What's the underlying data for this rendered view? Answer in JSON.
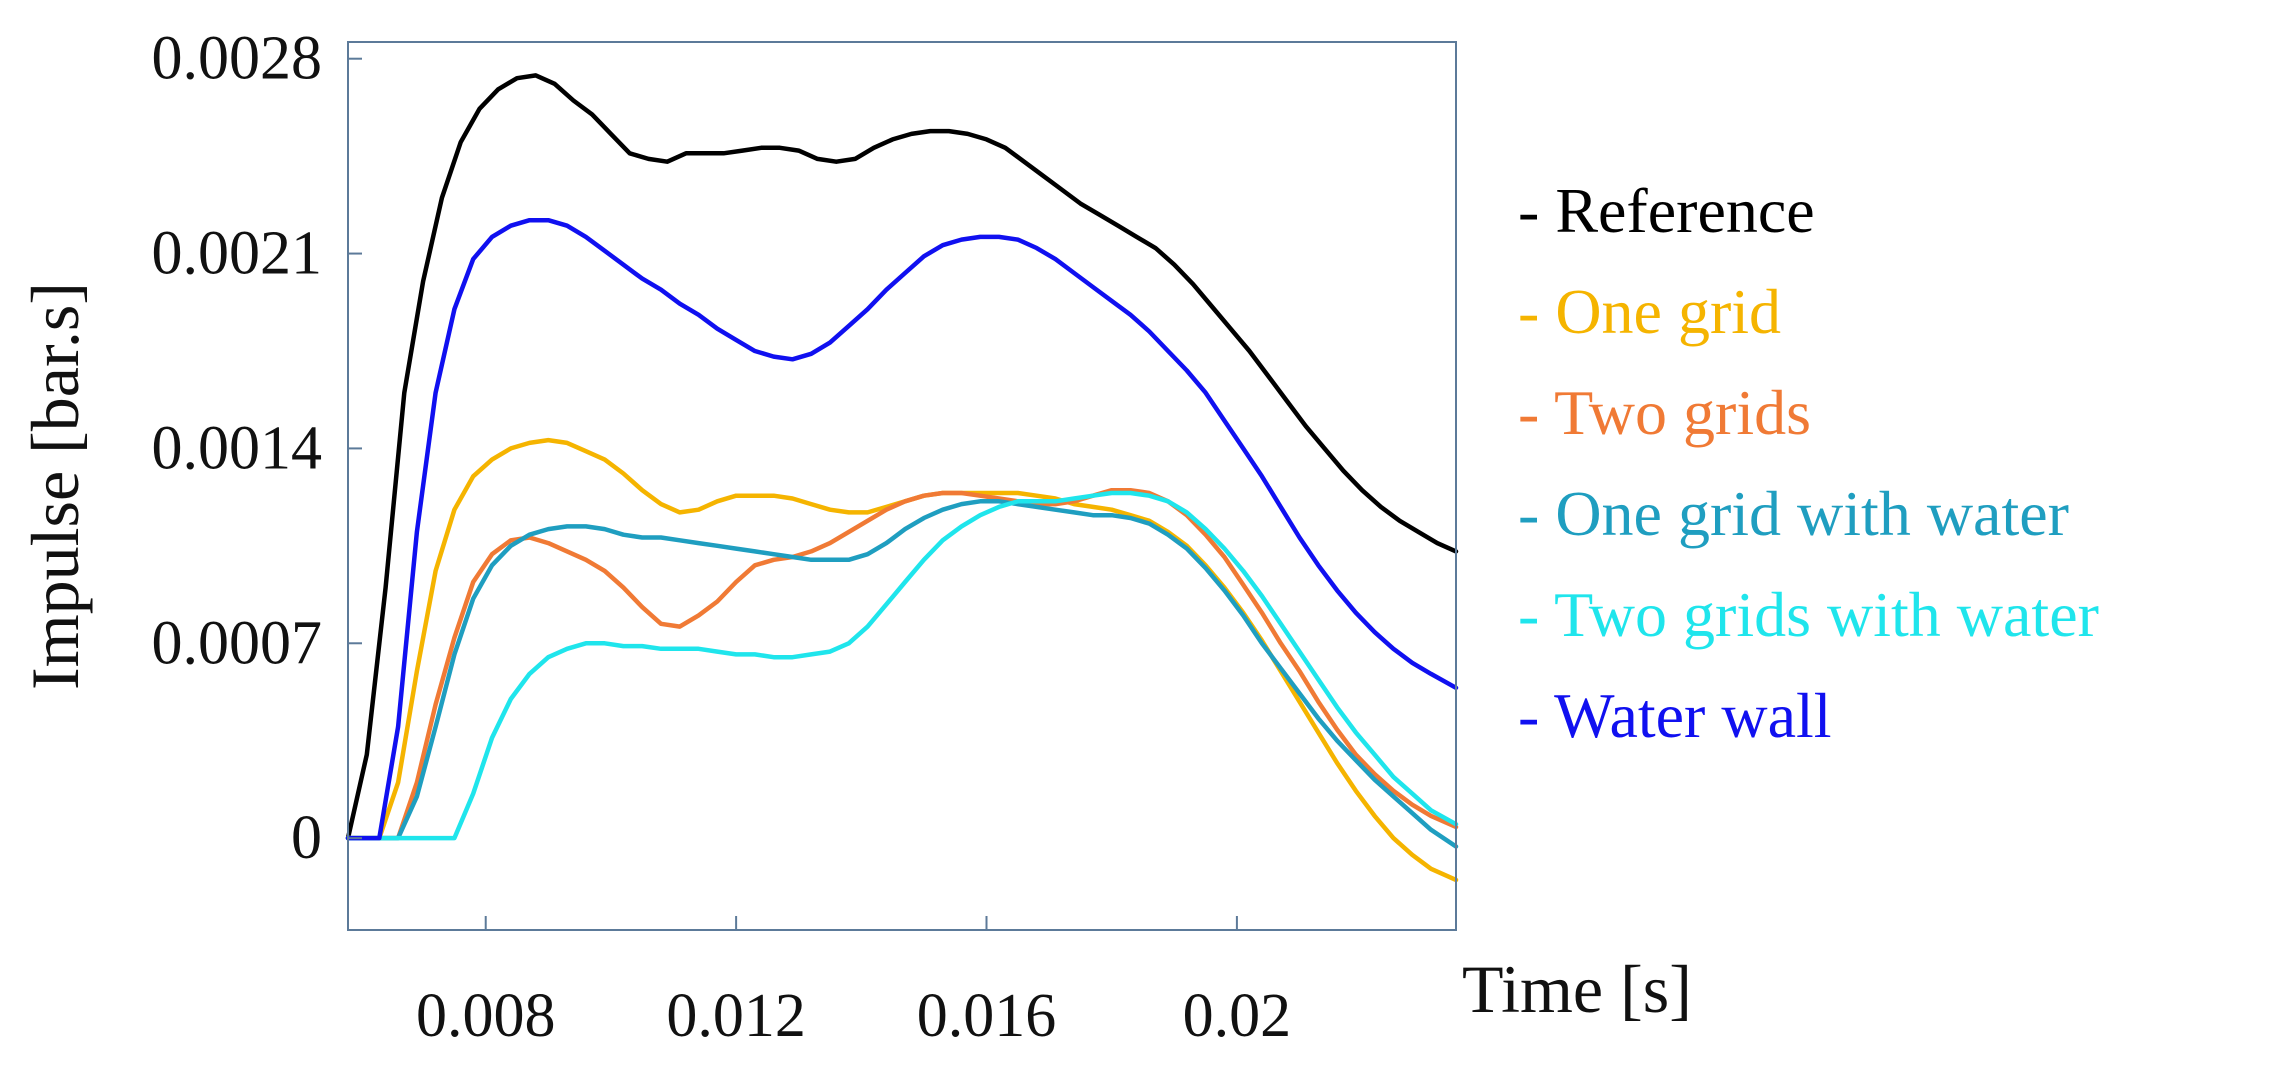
{
  "chart_data": {
    "type": "line",
    "title": "",
    "xlabel": "Time [s]",
    "ylabel": "Impulse [bar.s]",
    "xlim": [
      0.0058,
      0.0235
    ],
    "ylim": [
      -0.00033,
      0.00286
    ],
    "x_ticks": [
      0.008,
      0.012,
      0.016,
      0.02
    ],
    "x_tick_labels": [
      "0.008",
      "0.012",
      "0.016",
      "0.02"
    ],
    "y_ticks": [
      0,
      0.0007,
      0.0014,
      0.0021,
      0.0028
    ],
    "y_tick_labels": [
      "0",
      "0.0007",
      "0.0014",
      "0.0021",
      "0.0028"
    ],
    "grid": false,
    "legend_position": "right",
    "series": [
      {
        "name": "Reference",
        "label": "- Reference",
        "color": "#000000",
        "x": [
          0.0058,
          0.0061,
          0.0064,
          0.0067,
          0.007,
          0.0073,
          0.0076,
          0.0079,
          0.0082,
          0.0085,
          0.0088,
          0.0091,
          0.0094,
          0.0097,
          0.01,
          0.0103,
          0.0106,
          0.0109,
          0.0112,
          0.0115,
          0.0118,
          0.0121,
          0.0124,
          0.0127,
          0.013,
          0.0133,
          0.0136,
          0.0139,
          0.0142,
          0.0145,
          0.0148,
          0.0151,
          0.0154,
          0.0157,
          0.016,
          0.0163,
          0.0166,
          0.0169,
          0.0172,
          0.0175,
          0.0178,
          0.0181,
          0.0184,
          0.0187,
          0.019,
          0.0193,
          0.0196,
          0.0199,
          0.0202,
          0.0205,
          0.0208,
          0.0211,
          0.0214,
          0.0217,
          0.022,
          0.0223,
          0.0226,
          0.0229,
          0.0232,
          0.0235
        ],
        "values": [
          0.0,
          0.0003,
          0.0009,
          0.0016,
          0.002,
          0.0023,
          0.0025,
          0.00262,
          0.00269,
          0.00273,
          0.00274,
          0.00271,
          0.00265,
          0.0026,
          0.00253,
          0.00246,
          0.00244,
          0.00243,
          0.00246,
          0.00246,
          0.00246,
          0.00247,
          0.00248,
          0.00248,
          0.00247,
          0.00244,
          0.00243,
          0.00244,
          0.00248,
          0.00251,
          0.00253,
          0.00254,
          0.00254,
          0.00253,
          0.00251,
          0.00248,
          0.00243,
          0.00238,
          0.00233,
          0.00228,
          0.00224,
          0.0022,
          0.00216,
          0.00212,
          0.00206,
          0.00199,
          0.00191,
          0.00183,
          0.00175,
          0.00166,
          0.00157,
          0.00148,
          0.0014,
          0.00132,
          0.00125,
          0.00119,
          0.00114,
          0.0011,
          0.00106,
          0.00103
        ]
      },
      {
        "name": "One grid",
        "label": "- One grid",
        "color": "#F5B400",
        "x": [
          0.0058,
          0.0063,
          0.0066,
          0.0069,
          0.0072,
          0.0075,
          0.0078,
          0.0081,
          0.0084,
          0.0087,
          0.009,
          0.0093,
          0.0096,
          0.0099,
          0.0102,
          0.0105,
          0.0108,
          0.0111,
          0.0114,
          0.0117,
          0.012,
          0.0123,
          0.0126,
          0.0129,
          0.0132,
          0.0135,
          0.0138,
          0.0141,
          0.0144,
          0.0147,
          0.015,
          0.0153,
          0.0156,
          0.0159,
          0.0162,
          0.0165,
          0.0168,
          0.0171,
          0.0174,
          0.0177,
          0.018,
          0.0183,
          0.0186,
          0.0189,
          0.0192,
          0.0195,
          0.0198,
          0.0201,
          0.0204,
          0.0207,
          0.021,
          0.0213,
          0.0216,
          0.0219,
          0.0222,
          0.0225,
          0.0228,
          0.0231,
          0.0235
        ],
        "values": [
          0.0,
          0.0,
          0.0002,
          0.0006,
          0.00096,
          0.00118,
          0.0013,
          0.00136,
          0.0014,
          0.00142,
          0.00143,
          0.00142,
          0.00139,
          0.00136,
          0.00131,
          0.00125,
          0.0012,
          0.00117,
          0.00118,
          0.00121,
          0.00123,
          0.00123,
          0.00123,
          0.00122,
          0.0012,
          0.00118,
          0.00117,
          0.00117,
          0.00119,
          0.00121,
          0.00123,
          0.00124,
          0.00124,
          0.00124,
          0.00124,
          0.00124,
          0.00123,
          0.00122,
          0.0012,
          0.00119,
          0.00118,
          0.00116,
          0.00114,
          0.0011,
          0.00105,
          0.00098,
          0.0009,
          0.00081,
          0.00071,
          0.0006,
          0.00049,
          0.00038,
          0.00027,
          0.00017,
          8e-05,
          0.0,
          -6e-05,
          -0.00011,
          -0.00015
        ]
      },
      {
        "name": "Two grids",
        "label": "- Two grids",
        "color": "#F07A35",
        "x": [
          0.0058,
          0.0066,
          0.0069,
          0.0072,
          0.0075,
          0.0078,
          0.0081,
          0.0084,
          0.0087,
          0.009,
          0.0093,
          0.0096,
          0.0099,
          0.0102,
          0.0105,
          0.0108,
          0.0111,
          0.0114,
          0.0117,
          0.012,
          0.0123,
          0.0126,
          0.0129,
          0.0132,
          0.0135,
          0.0138,
          0.0141,
          0.0144,
          0.0147,
          0.015,
          0.0153,
          0.0156,
          0.0159,
          0.0162,
          0.0165,
          0.0168,
          0.0171,
          0.0174,
          0.0177,
          0.018,
          0.0183,
          0.0186,
          0.0189,
          0.0192,
          0.0195,
          0.0198,
          0.0201,
          0.0204,
          0.0207,
          0.021,
          0.0213,
          0.0216,
          0.0219,
          0.0222,
          0.0225,
          0.0228,
          0.0231,
          0.0235
        ],
        "values": [
          0.0,
          0.0,
          0.0002,
          0.00048,
          0.00072,
          0.00092,
          0.00102,
          0.00107,
          0.00108,
          0.00106,
          0.00103,
          0.001,
          0.00096,
          0.0009,
          0.00083,
          0.00077,
          0.00076,
          0.0008,
          0.00085,
          0.00092,
          0.00098,
          0.001,
          0.00101,
          0.00103,
          0.00106,
          0.0011,
          0.00114,
          0.00118,
          0.00121,
          0.00123,
          0.00124,
          0.00124,
          0.00123,
          0.00122,
          0.00121,
          0.0012,
          0.0012,
          0.00121,
          0.00123,
          0.00125,
          0.00125,
          0.00124,
          0.00121,
          0.00116,
          0.00109,
          0.00101,
          0.00091,
          0.00081,
          0.0007,
          0.0006,
          0.00049,
          0.00039,
          0.0003,
          0.00023,
          0.00017,
          0.00012,
          8e-05,
          4e-05
        ]
      },
      {
        "name": "One grid with water",
        "label": "- One grid with water",
        "color": "#1F9EC0",
        "x": [
          0.0058,
          0.0066,
          0.0069,
          0.0072,
          0.0075,
          0.0078,
          0.0081,
          0.0084,
          0.0087,
          0.009,
          0.0093,
          0.0096,
          0.0099,
          0.0102,
          0.0105,
          0.0108,
          0.0111,
          0.0114,
          0.0117,
          0.012,
          0.0123,
          0.0126,
          0.0129,
          0.0132,
          0.0135,
          0.0138,
          0.0141,
          0.0144,
          0.0147,
          0.015,
          0.0153,
          0.0156,
          0.0159,
          0.0162,
          0.0165,
          0.0168,
          0.0171,
          0.0174,
          0.0177,
          0.018,
          0.0183,
          0.0186,
          0.0189,
          0.0192,
          0.0195,
          0.0198,
          0.0201,
          0.0204,
          0.0207,
          0.021,
          0.0213,
          0.0216,
          0.0219,
          0.0222,
          0.0225,
          0.0228,
          0.0231,
          0.0235
        ],
        "values": [
          0.0,
          0.0,
          0.00015,
          0.0004,
          0.00066,
          0.00086,
          0.00098,
          0.00105,
          0.00109,
          0.00111,
          0.00112,
          0.00112,
          0.00111,
          0.00109,
          0.00108,
          0.00108,
          0.00107,
          0.00106,
          0.00105,
          0.00104,
          0.00103,
          0.00102,
          0.00101,
          0.001,
          0.001,
          0.001,
          0.00102,
          0.00106,
          0.00111,
          0.00115,
          0.00118,
          0.0012,
          0.00121,
          0.00121,
          0.0012,
          0.00119,
          0.00118,
          0.00117,
          0.00116,
          0.00116,
          0.00115,
          0.00113,
          0.00109,
          0.00104,
          0.00097,
          0.00089,
          0.0008,
          0.0007,
          0.00061,
          0.00052,
          0.00043,
          0.00035,
          0.00028,
          0.00021,
          0.00015,
          9e-05,
          3e-05,
          -3e-05
        ]
      },
      {
        "name": "Two grids with water",
        "label": "- Two grids with water",
        "color": "#1FE5EC",
        "x": [
          0.0058,
          0.0066,
          0.0069,
          0.0072,
          0.0075,
          0.0078,
          0.0081,
          0.0084,
          0.0087,
          0.009,
          0.0093,
          0.0096,
          0.0099,
          0.0102,
          0.0105,
          0.0108,
          0.0111,
          0.0114,
          0.0117,
          0.012,
          0.0123,
          0.0126,
          0.0129,
          0.0132,
          0.0135,
          0.0138,
          0.0141,
          0.0144,
          0.0147,
          0.015,
          0.0153,
          0.0156,
          0.0159,
          0.0162,
          0.0165,
          0.0168,
          0.0171,
          0.0174,
          0.0177,
          0.018,
          0.0183,
          0.0186,
          0.0189,
          0.0192,
          0.0195,
          0.0198,
          0.0201,
          0.0204,
          0.0207,
          0.021,
          0.0213,
          0.0216,
          0.0219,
          0.0222,
          0.0225,
          0.0228,
          0.0231,
          0.0235
        ],
        "values": [
          0.0,
          0.0,
          0.0,
          0.0,
          0.0,
          0.00016,
          0.00036,
          0.0005,
          0.00059,
          0.00065,
          0.00068,
          0.0007,
          0.0007,
          0.00069,
          0.00069,
          0.00068,
          0.00068,
          0.00068,
          0.00067,
          0.00066,
          0.00066,
          0.00065,
          0.00065,
          0.00066,
          0.00067,
          0.0007,
          0.00076,
          0.00084,
          0.00092,
          0.001,
          0.00107,
          0.00112,
          0.00116,
          0.00119,
          0.00121,
          0.00121,
          0.00121,
          0.00122,
          0.00123,
          0.00124,
          0.00124,
          0.00123,
          0.00121,
          0.00117,
          0.00111,
          0.00104,
          0.00096,
          0.00087,
          0.00077,
          0.00067,
          0.00057,
          0.00047,
          0.00038,
          0.0003,
          0.00022,
          0.00016,
          0.0001,
          5e-05
        ]
      },
      {
        "name": "Water wall",
        "label": "- Water wall",
        "color": "#1010F0",
        "x": [
          0.0058,
          0.0063,
          0.0066,
          0.0069,
          0.0072,
          0.0075,
          0.0078,
          0.0081,
          0.0084,
          0.0087,
          0.009,
          0.0093,
          0.0096,
          0.0099,
          0.0102,
          0.0105,
          0.0108,
          0.0111,
          0.0114,
          0.0117,
          0.012,
          0.0123,
          0.0126,
          0.0129,
          0.0132,
          0.0135,
          0.0138,
          0.0141,
          0.0144,
          0.0147,
          0.015,
          0.0153,
          0.0156,
          0.0159,
          0.0162,
          0.0165,
          0.0168,
          0.0171,
          0.0174,
          0.0177,
          0.018,
          0.0183,
          0.0186,
          0.0189,
          0.0192,
          0.0195,
          0.0198,
          0.0201,
          0.0204,
          0.0207,
          0.021,
          0.0213,
          0.0216,
          0.0219,
          0.0222,
          0.0225,
          0.0228,
          0.0231,
          0.0235
        ],
        "values": [
          0.0,
          0.0,
          0.0004,
          0.0011,
          0.0016,
          0.0019,
          0.00208,
          0.00216,
          0.0022,
          0.00222,
          0.00222,
          0.0022,
          0.00216,
          0.00211,
          0.00206,
          0.00201,
          0.00197,
          0.00192,
          0.00188,
          0.00183,
          0.00179,
          0.00175,
          0.00173,
          0.00172,
          0.00174,
          0.00178,
          0.00184,
          0.0019,
          0.00197,
          0.00203,
          0.00209,
          0.00213,
          0.00215,
          0.00216,
          0.00216,
          0.00215,
          0.00212,
          0.00208,
          0.00203,
          0.00198,
          0.00193,
          0.00188,
          0.00182,
          0.00175,
          0.00168,
          0.0016,
          0.0015,
          0.0014,
          0.0013,
          0.00119,
          0.00108,
          0.00098,
          0.00089,
          0.00081,
          0.00074,
          0.00068,
          0.00063,
          0.00059,
          0.00054
        ]
      }
    ]
  }
}
